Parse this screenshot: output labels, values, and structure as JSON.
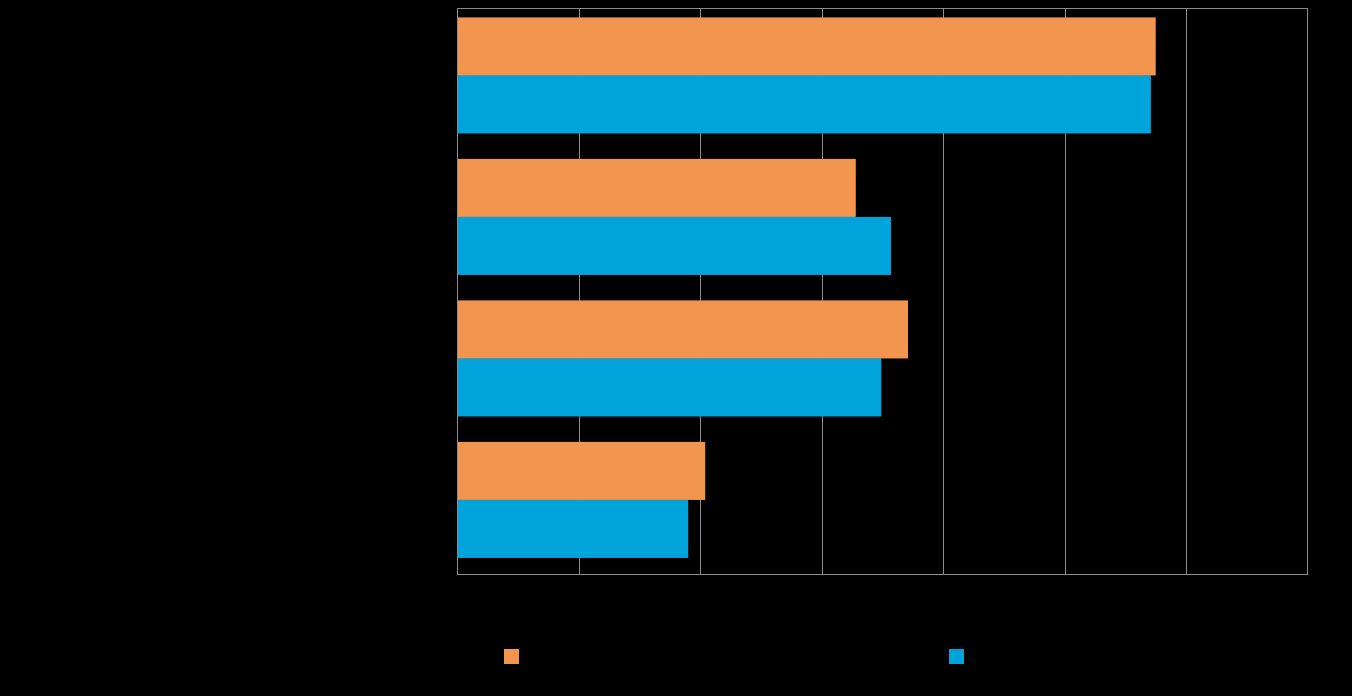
{
  "chart_data": {
    "type": "bar",
    "orientation": "horizontal",
    "title": "",
    "xlabel": "",
    "ylabel": "",
    "categories": [
      "",
      "",
      "",
      ""
    ],
    "xlim": [
      0,
      7
    ],
    "gridlines": [
      1,
      2,
      3,
      4,
      5,
      6
    ],
    "grid": true,
    "legend_position": "bottom",
    "series": [
      {
        "color": "#F2954F",
        "values": [
          5.75,
          3.28,
          3.71,
          2.04
        ]
      },
      {
        "color": "#00A3DA",
        "values": [
          5.71,
          3.57,
          3.49,
          1.9
        ]
      }
    ]
  }
}
